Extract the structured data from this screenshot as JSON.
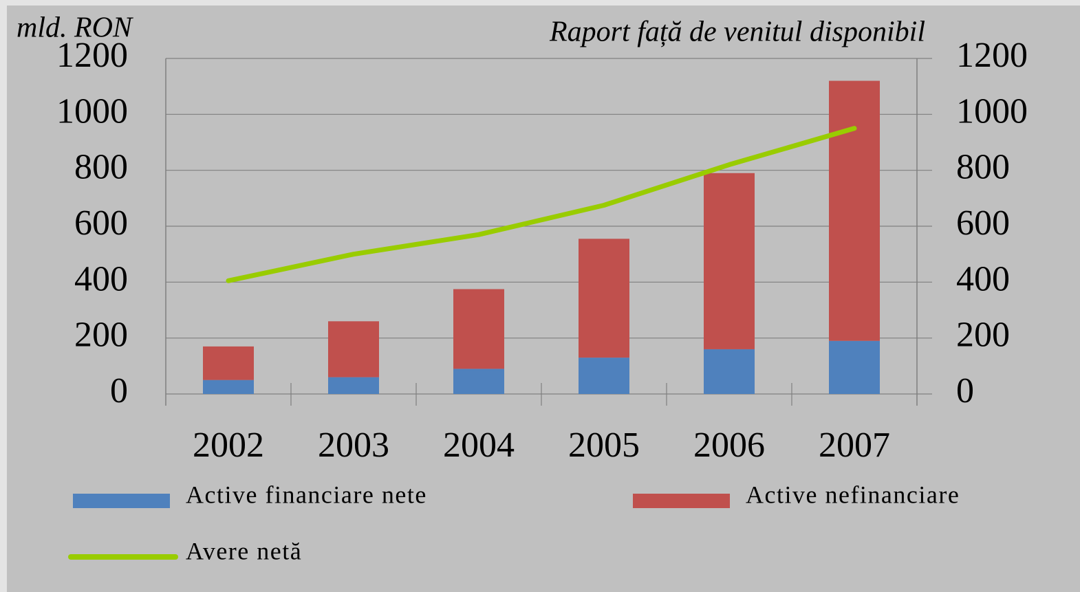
{
  "chart_data": {
    "type": "bar_line",
    "ylabel": "mld. RON",
    "y2label": "Raport față de venitul disponibil",
    "categories": [
      "2002",
      "2003",
      "2004",
      "2005",
      "2006",
      "2007"
    ],
    "series": [
      {
        "name": "Active financiare nete",
        "color": "#4f81bd",
        "kind": "bar",
        "values": [
          50,
          60,
          90,
          130,
          160,
          190
        ]
      },
      {
        "name": "Active nefinanciare",
        "color": "#c0504d",
        "kind": "bar",
        "values": [
          120,
          200,
          285,
          425,
          630,
          930
        ]
      },
      {
        "name": "Avere netă",
        "color": "#99cc00",
        "kind": "line",
        "axis": "y2",
        "values": [
          405,
          500,
          570,
          675,
          820,
          950
        ]
      }
    ],
    "ylim": [
      0,
      1200
    ],
    "yticks": [
      0,
      200,
      400,
      600,
      800,
      1000,
      1200
    ],
    "y2lim": [
      0,
      1200
    ],
    "y2ticks": [
      0,
      200,
      400,
      600,
      800,
      1000,
      1200
    ],
    "grid": true,
    "stacked": true,
    "legend": "bottom"
  }
}
